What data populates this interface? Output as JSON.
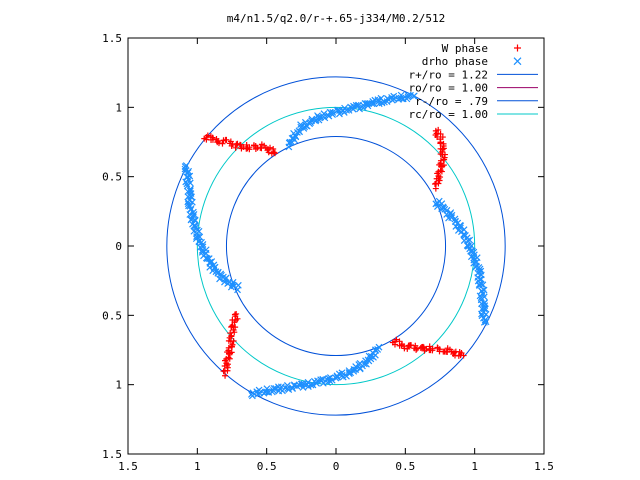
{
  "chart_data": {
    "type": "scatter",
    "title": "m4/n1.5/q2.0/r-+.65-j334/M0.2/512",
    "xlim": [
      -1.5,
      1.5
    ],
    "ylim": [
      -1.5,
      1.5
    ],
    "x_ticks": [
      -1.5,
      -1,
      -0.5,
      0,
      0.5,
      1,
      1.5
    ],
    "y_ticks": [
      -1.5,
      -1,
      -0.5,
      0,
      0.5,
      1,
      1.5
    ],
    "x_tick_labels": [
      "1.5",
      "1",
      "0.5",
      "0",
      "0.5",
      "1",
      "1.5"
    ],
    "y_tick_labels": [
      "1.5",
      "1",
      "0.5",
      "0",
      "0.5",
      "1",
      "1.5"
    ],
    "grid": false,
    "legend_position": "top-right",
    "series": [
      {
        "name": "W phase",
        "kind": "points",
        "marker": "+",
        "color": "#ff0000",
        "arms": [
          [
            [
              -0.95,
              0.79
            ],
            [
              -0.86,
              0.76
            ],
            [
              -0.78,
              0.75
            ],
            [
              -0.7,
              0.72
            ],
            [
              -0.62,
              0.71
            ],
            [
              -0.56,
              0.72
            ],
            [
              -0.49,
              0.7
            ],
            [
              -0.44,
              0.67
            ]
          ],
          [
            [
              0.72,
              0.43
            ],
            [
              0.74,
              0.5
            ],
            [
              0.76,
              0.57
            ],
            [
              0.77,
              0.63
            ],
            [
              0.77,
              0.69
            ],
            [
              0.76,
              0.76
            ],
            [
              0.74,
              0.8
            ],
            [
              0.72,
              0.83
            ]
          ],
          [
            [
              0.41,
              -0.68
            ],
            [
              0.48,
              -0.72
            ],
            [
              0.55,
              -0.73
            ],
            [
              0.62,
              -0.74
            ],
            [
              0.7,
              -0.74
            ],
            [
              0.78,
              -0.75
            ],
            [
              0.85,
              -0.77
            ],
            [
              0.92,
              -0.79
            ]
          ],
          [
            [
              -0.8,
              -0.92
            ],
            [
              -0.79,
              -0.85
            ],
            [
              -0.77,
              -0.78
            ],
            [
              -0.76,
              -0.72
            ],
            [
              -0.75,
              -0.64
            ],
            [
              -0.74,
              -0.56
            ],
            [
              -0.72,
              -0.49
            ]
          ]
        ]
      },
      {
        "name": "drho phase",
        "kind": "points",
        "marker": "x",
        "color": "#1e90ff",
        "arms": [
          [
            [
              -0.34,
              0.73
            ],
            [
              -0.3,
              0.79
            ],
            [
              -0.24,
              0.86
            ],
            [
              -0.14,
              0.92
            ],
            [
              -0.02,
              0.96
            ],
            [
              0.1,
              0.99
            ],
            [
              0.22,
              1.02
            ],
            [
              0.34,
              1.05
            ],
            [
              0.46,
              1.07
            ],
            [
              0.56,
              1.08
            ]
          ],
          [
            [
              0.72,
              0.32
            ],
            [
              0.79,
              0.26
            ],
            [
              0.85,
              0.19
            ],
            [
              0.91,
              0.11
            ],
            [
              0.96,
              0.01
            ],
            [
              1.0,
              -0.09
            ],
            [
              1.03,
              -0.19
            ],
            [
              1.05,
              -0.3
            ],
            [
              1.06,
              -0.41
            ],
            [
              1.07,
              -0.55
            ]
          ],
          [
            [
              0.3,
              -0.73
            ],
            [
              0.26,
              -0.8
            ],
            [
              0.18,
              -0.87
            ],
            [
              0.08,
              -0.92
            ],
            [
              -0.04,
              -0.96
            ],
            [
              -0.16,
              -0.99
            ],
            [
              -0.28,
              -1.01
            ],
            [
              -0.4,
              -1.03
            ],
            [
              -0.52,
              -1.05
            ],
            [
              -0.61,
              -1.07
            ]
          ],
          [
            [
              -0.71,
              -0.3
            ],
            [
              -0.78,
              -0.26
            ],
            [
              -0.85,
              -0.2
            ],
            [
              -0.91,
              -0.12
            ],
            [
              -0.96,
              -0.02
            ],
            [
              -1.0,
              0.08
            ],
            [
              -1.03,
              0.18
            ],
            [
              -1.05,
              0.29
            ],
            [
              -1.06,
              0.41
            ],
            [
              -1.08,
              0.58
            ]
          ]
        ]
      },
      {
        "name": "r+/ro = 1.22",
        "kind": "circle",
        "radius": 1.22,
        "color": "#0050d8"
      },
      {
        "name": "ro/ro = 1.00",
        "kind": "legend-only",
        "color": "#990066"
      },
      {
        "name": "r-/ro = .79",
        "kind": "circle",
        "radius": 0.79,
        "color": "#0050d8"
      },
      {
        "name": "rc/ro = 1.00",
        "kind": "circle",
        "radius": 1.0,
        "color": "#00c8c8"
      }
    ]
  }
}
